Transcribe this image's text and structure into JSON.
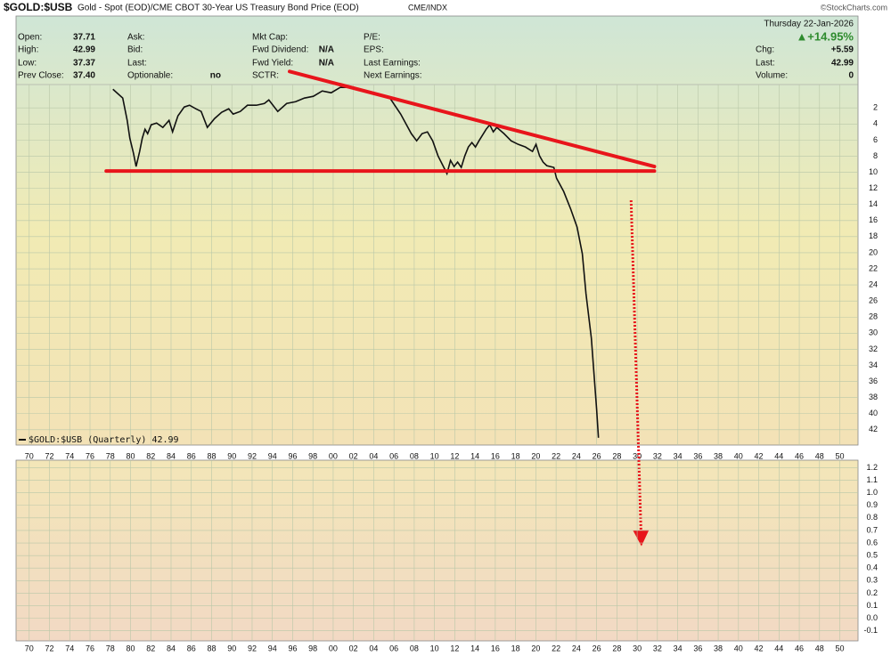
{
  "chart_data": [
    {
      "type": "line",
      "title": "$GOLD:$USB",
      "subtitle": "Gold - Spot (EOD)/CME CBOT 30-Year US Treasury Bond Price (EOD)",
      "exchange": "CME/INDX",
      "source": "©StockCharts.com",
      "y_inverted": true,
      "grid": true,
      "legend": "bottom-left",
      "x": [
        1978.26,
        1979.23,
        1979.67,
        1979.93,
        1980.29,
        1980.55,
        1980.9,
        1981.16,
        1981.43,
        1981.69,
        1982.04,
        1982.57,
        1983.19,
        1983.8,
        1984.15,
        1984.68,
        1985.3,
        1985.82,
        1986.44,
        1986.97,
        1987.58,
        1988.29,
        1988.99,
        1989.69,
        1990.13,
        1990.83,
        1991.54,
        1992.42,
        1993.21,
        1993.65,
        1994.53,
        1995.41,
        1996.29,
        1997.16,
        1998.04,
        1998.92,
        1999.8,
        2000.68,
        2001.56,
        2002.44,
        2003.49,
        2004.55,
        2005.6,
        2006.66,
        2007.71,
        2008.24,
        2008.77,
        2009.3,
        2009.82,
        2010.35,
        2010.88,
        2011.23,
        2011.58,
        2011.93,
        2012.28,
        2012.64,
        2012.99,
        2013.34,
        2013.69,
        2014.04,
        2014.39,
        2015.1,
        2015.45,
        2015.8,
        2016.15,
        2016.86,
        2017.56,
        2018.26,
        2018.97,
        2019.67,
        2020.02,
        2020.37,
        2020.72,
        2021.08,
        2021.78,
        2022.04,
        2022.75,
        2023.45,
        2024.07,
        2024.59,
        2024.95,
        2025.48,
        2026.0,
        2026.18
      ],
      "series": [
        {
          "name": "$GOLD:$USB (Quarterly)",
          "color": "#111111",
          "values": [
            -0.32,
            0.78,
            3.55,
            5.76,
            7.64,
            9.29,
            7.41,
            5.76,
            4.65,
            5.2,
            4.1,
            3.88,
            4.43,
            3.55,
            4.98,
            2.99,
            1.89,
            1.67,
            2.11,
            2.44,
            4.43,
            3.33,
            2.55,
            2.11,
            2.77,
            2.44,
            1.67,
            1.67,
            1.45,
            1.01,
            2.44,
            1.45,
            1.23,
            0.78,
            0.56,
            -0.1,
            0.12,
            -0.54,
            -0.54,
            -0.32,
            0.01,
            0.34,
            0.78,
            2.77,
            5.2,
            6.09,
            5.2,
            4.98,
            6.09,
            7.97,
            9.29,
            10.18,
            8.52,
            9.29,
            8.74,
            9.4,
            7.97,
            6.86,
            6.31,
            6.86,
            6.09,
            4.65,
            4.1,
            4.98,
            4.43,
            5.2,
            6.09,
            6.53,
            6.86,
            7.41,
            6.53,
            7.97,
            8.74,
            9.18,
            9.4,
            10.73,
            12.39,
            14.6,
            16.81,
            20.13,
            25.09,
            30.62,
            39.46,
            42.99
          ]
        }
      ],
      "annotations": [
        {
          "x": [
            1977.6,
            2031.7
          ],
          "y": [
            9.85,
            9.85
          ],
          "color": "#e8151b",
          "style": "solid"
        },
        {
          "x": [
            1995.7,
            2031.7
          ],
          "y": [
            -2.53,
            9.29
          ],
          "color": "#e8151b",
          "style": "solid"
        },
        {
          "x": [
            2029.4,
            2030.4
          ],
          "y": [
            13.49,
            55.48
          ],
          "color": "#e8151b",
          "style": "dotted",
          "arrow": true
        }
      ],
      "xlim": [
        1968.7,
        2051.8
      ],
      "xticks": [
        {
          "value": 1970,
          "label": "70"
        },
        {
          "value": 1972,
          "label": "72"
        },
        {
          "value": 1974,
          "label": "74"
        },
        {
          "value": 1976,
          "label": "76"
        },
        {
          "value": 1978,
          "label": "78"
        },
        {
          "value": 1980,
          "label": "80"
        },
        {
          "value": 1982,
          "label": "82"
        },
        {
          "value": 1984,
          "label": "84"
        },
        {
          "value": 1986,
          "label": "86"
        },
        {
          "value": 1988,
          "label": "88"
        },
        {
          "value": 1990,
          "label": "90"
        },
        {
          "value": 1992,
          "label": "92"
        },
        {
          "value": 1994,
          "label": "94"
        },
        {
          "value": 1996,
          "label": "96"
        },
        {
          "value": 1998,
          "label": "98"
        },
        {
          "value": 2000,
          "label": "00"
        },
        {
          "value": 2002,
          "label": "02"
        },
        {
          "value": 2004,
          "label": "04"
        },
        {
          "value": 2006,
          "label": "06"
        },
        {
          "value": 2008,
          "label": "08"
        },
        {
          "value": 2010,
          "label": "10"
        },
        {
          "value": 2012,
          "label": "12"
        },
        {
          "value": 2014,
          "label": "14"
        },
        {
          "value": 2016,
          "label": "16"
        },
        {
          "value": 2018,
          "label": "18"
        },
        {
          "value": 2020,
          "label": "20"
        },
        {
          "value": 2022,
          "label": "22"
        },
        {
          "value": 2024,
          "label": "24"
        },
        {
          "value": 2026,
          "label": "26"
        },
        {
          "value": 2028,
          "label": "28"
        },
        {
          "value": 2030,
          "label": "30"
        },
        {
          "value": 2032,
          "label": "32"
        },
        {
          "value": 2034,
          "label": "34"
        },
        {
          "value": 2036,
          "label": "36"
        },
        {
          "value": 2038,
          "label": "38"
        },
        {
          "value": 2040,
          "label": "40"
        },
        {
          "value": 2042,
          "label": "42"
        },
        {
          "value": 2044,
          "label": "44"
        },
        {
          "value": 2046,
          "label": "46"
        },
        {
          "value": 2048,
          "label": "48"
        },
        {
          "value": 2050,
          "label": "50"
        }
      ],
      "ylim": [
        -0.9,
        43.9
      ],
      "yticks": [
        2,
        4,
        6,
        8,
        10,
        12,
        14,
        16,
        18,
        20,
        22,
        24,
        26,
        28,
        30,
        32,
        34,
        36,
        38,
        40,
        42
      ]
    },
    {
      "type": "panel",
      "grid": true,
      "xlim": [
        1968.7,
        2051.8
      ],
      "xticks": [
        {
          "value": 1970,
          "label": "70"
        },
        {
          "value": 1972,
          "label": "72"
        },
        {
          "value": 1974,
          "label": "74"
        },
        {
          "value": 1976,
          "label": "76"
        },
        {
          "value": 1978,
          "label": "78"
        },
        {
          "value": 1980,
          "label": "80"
        },
        {
          "value": 1982,
          "label": "82"
        },
        {
          "value": 1984,
          "label": "84"
        },
        {
          "value": 1986,
          "label": "86"
        },
        {
          "value": 1988,
          "label": "88"
        },
        {
          "value": 1990,
          "label": "90"
        },
        {
          "value": 1992,
          "label": "92"
        },
        {
          "value": 1994,
          "label": "94"
        },
        {
          "value": 1996,
          "label": "96"
        },
        {
          "value": 1998,
          "label": "98"
        },
        {
          "value": 2000,
          "label": "00"
        },
        {
          "value": 2002,
          "label": "02"
        },
        {
          "value": 2004,
          "label": "04"
        },
        {
          "value": 2006,
          "label": "06"
        },
        {
          "value": 2008,
          "label": "08"
        },
        {
          "value": 2010,
          "label": "10"
        },
        {
          "value": 2012,
          "label": "12"
        },
        {
          "value": 2014,
          "label": "14"
        },
        {
          "value": 2016,
          "label": "16"
        },
        {
          "value": 2018,
          "label": "18"
        },
        {
          "value": 2020,
          "label": "20"
        },
        {
          "value": 2022,
          "label": "22"
        },
        {
          "value": 2024,
          "label": "24"
        },
        {
          "value": 2026,
          "label": "26"
        },
        {
          "value": 2028,
          "label": "28"
        },
        {
          "value": 2030,
          "label": "30"
        },
        {
          "value": 2032,
          "label": "32"
        },
        {
          "value": 2034,
          "label": "34"
        },
        {
          "value": 2036,
          "label": "36"
        },
        {
          "value": 2038,
          "label": "38"
        },
        {
          "value": 2040,
          "label": "40"
        },
        {
          "value": 2042,
          "label": "42"
        },
        {
          "value": 2044,
          "label": "44"
        },
        {
          "value": 2046,
          "label": "46"
        },
        {
          "value": 2048,
          "label": "48"
        },
        {
          "value": 2050,
          "label": "50"
        }
      ],
      "ylim": [
        -0.18,
        1.26
      ],
      "yticks": [
        1.2,
        1.1,
        {
          "value": 1,
          "label": "1.0"
        },
        0.9,
        0.8,
        0.7,
        0.6,
        0.5,
        0.4,
        0.3,
        0.2,
        0.1,
        {
          "value": 0,
          "label": "0.0"
        },
        -0.1
      ]
    }
  ],
  "info": {
    "date": "Thursday  22-Jan-2026",
    "change_pct": "▲+14.95%",
    "columns": [
      [
        [
          "Open:",
          "37.71"
        ],
        [
          "High:",
          "42.99"
        ],
        [
          "Low:",
          "37.37"
        ],
        [
          "Prev Close:",
          "37.40"
        ]
      ],
      [
        [
          "Ask:"
        ],
        [
          "Bid:"
        ],
        [
          "Last:"
        ],
        [
          "Optionable:",
          "no"
        ]
      ],
      [
        [
          "Mkt Cap:"
        ],
        [
          "Fwd Dividend:",
          "N/A"
        ],
        [
          "Fwd Yield:",
          "N/A"
        ],
        [
          "SCTR:"
        ]
      ],
      [
        [
          "P/E:"
        ],
        [
          "EPS:"
        ],
        [
          "Last Earnings:"
        ],
        [
          "Next Earnings:"
        ]
      ],
      [
        [
          "Chg:",
          "+5.59"
        ],
        [
          "Last:",
          "42.99"
        ],
        [
          "Volume:",
          "0"
        ]
      ]
    ]
  }
}
